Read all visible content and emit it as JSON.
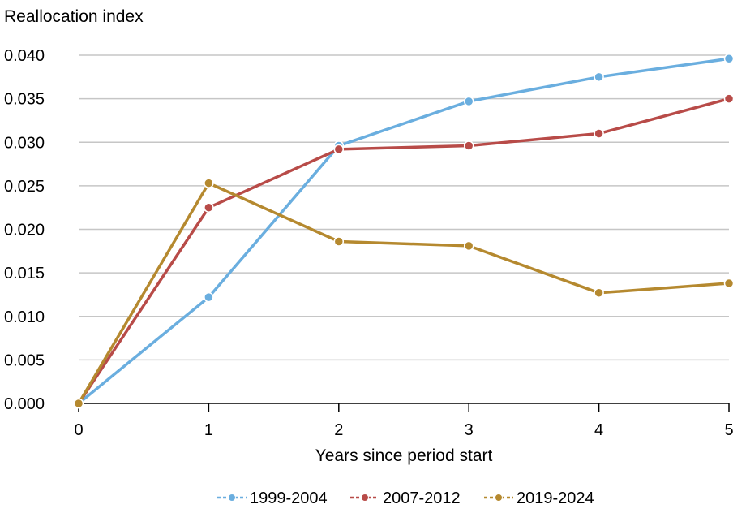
{
  "chart_data": {
    "type": "line",
    "ylabel": "Reallocation index",
    "xlabel": "Years since period start",
    "x": [
      0,
      1,
      2,
      3,
      4,
      5
    ],
    "xlim": [
      0,
      5
    ],
    "ylim": [
      0,
      0.04
    ],
    "yticks": [
      "0.000",
      "0.005",
      "0.010",
      "0.015",
      "0.020",
      "0.025",
      "0.030",
      "0.035",
      "0.040"
    ],
    "xticks": [
      "0",
      "1",
      "2",
      "3",
      "4",
      "5"
    ],
    "grid": true,
    "legend_position": "bottom",
    "series": [
      {
        "name": "1999-2004",
        "color": "#6aaedf",
        "values": [
          0.0,
          0.0122,
          0.0296,
          0.0347,
          0.0375,
          0.0396
        ]
      },
      {
        "name": "2007-2012",
        "color": "#b84b48",
        "values": [
          0.0,
          0.0225,
          0.0292,
          0.0296,
          0.031,
          0.035
        ]
      },
      {
        "name": "2019-2024",
        "color": "#b5892f",
        "values": [
          0.0,
          0.0253,
          0.0186,
          0.0181,
          0.0127,
          0.0138
        ]
      }
    ]
  }
}
